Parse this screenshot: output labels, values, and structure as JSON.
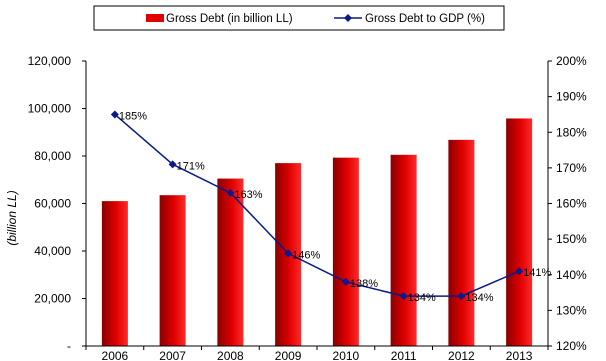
{
  "chart_data": {
    "type": "bar+line",
    "categories": [
      "2006",
      "2007",
      "2008",
      "2009",
      "2010",
      "2011",
      "2012",
      "2013"
    ],
    "series": [
      {
        "name": "Gross Debt (in billion LL)",
        "type": "bar",
        "axis": "left",
        "color": "#e00000",
        "values": [
          61000,
          63500,
          70500,
          77000,
          79300,
          80500,
          86800,
          95800
        ]
      },
      {
        "name": "Gross Debt to GDP (%)",
        "type": "line",
        "axis": "right",
        "color": "#0a1a8c",
        "values": [
          185,
          171,
          163,
          146,
          138,
          134,
          134,
          141
        ],
        "labels": [
          "185%",
          "171%",
          "163%",
          "146%",
          "138%",
          "134%",
          "134%",
          "141%"
        ]
      }
    ],
    "ylabel": "(billion LL)",
    "ylim": [
      0,
      120000
    ],
    "y_ticks": [
      "-",
      "20,000",
      "40,000",
      "60,000",
      "80,000",
      "100,000",
      "120,000"
    ],
    "y_tick_values": [
      0,
      20000,
      40000,
      60000,
      80000,
      100000,
      120000
    ],
    "y2lim": [
      120,
      200
    ],
    "y2_ticks": [
      "120%",
      "130%",
      "140%",
      "150%",
      "160%",
      "170%",
      "180%",
      "190%",
      "200%"
    ],
    "y2_tick_values": [
      120,
      130,
      140,
      150,
      160,
      170,
      180,
      190,
      200
    ],
    "legend_position": "top",
    "grid": false
  }
}
